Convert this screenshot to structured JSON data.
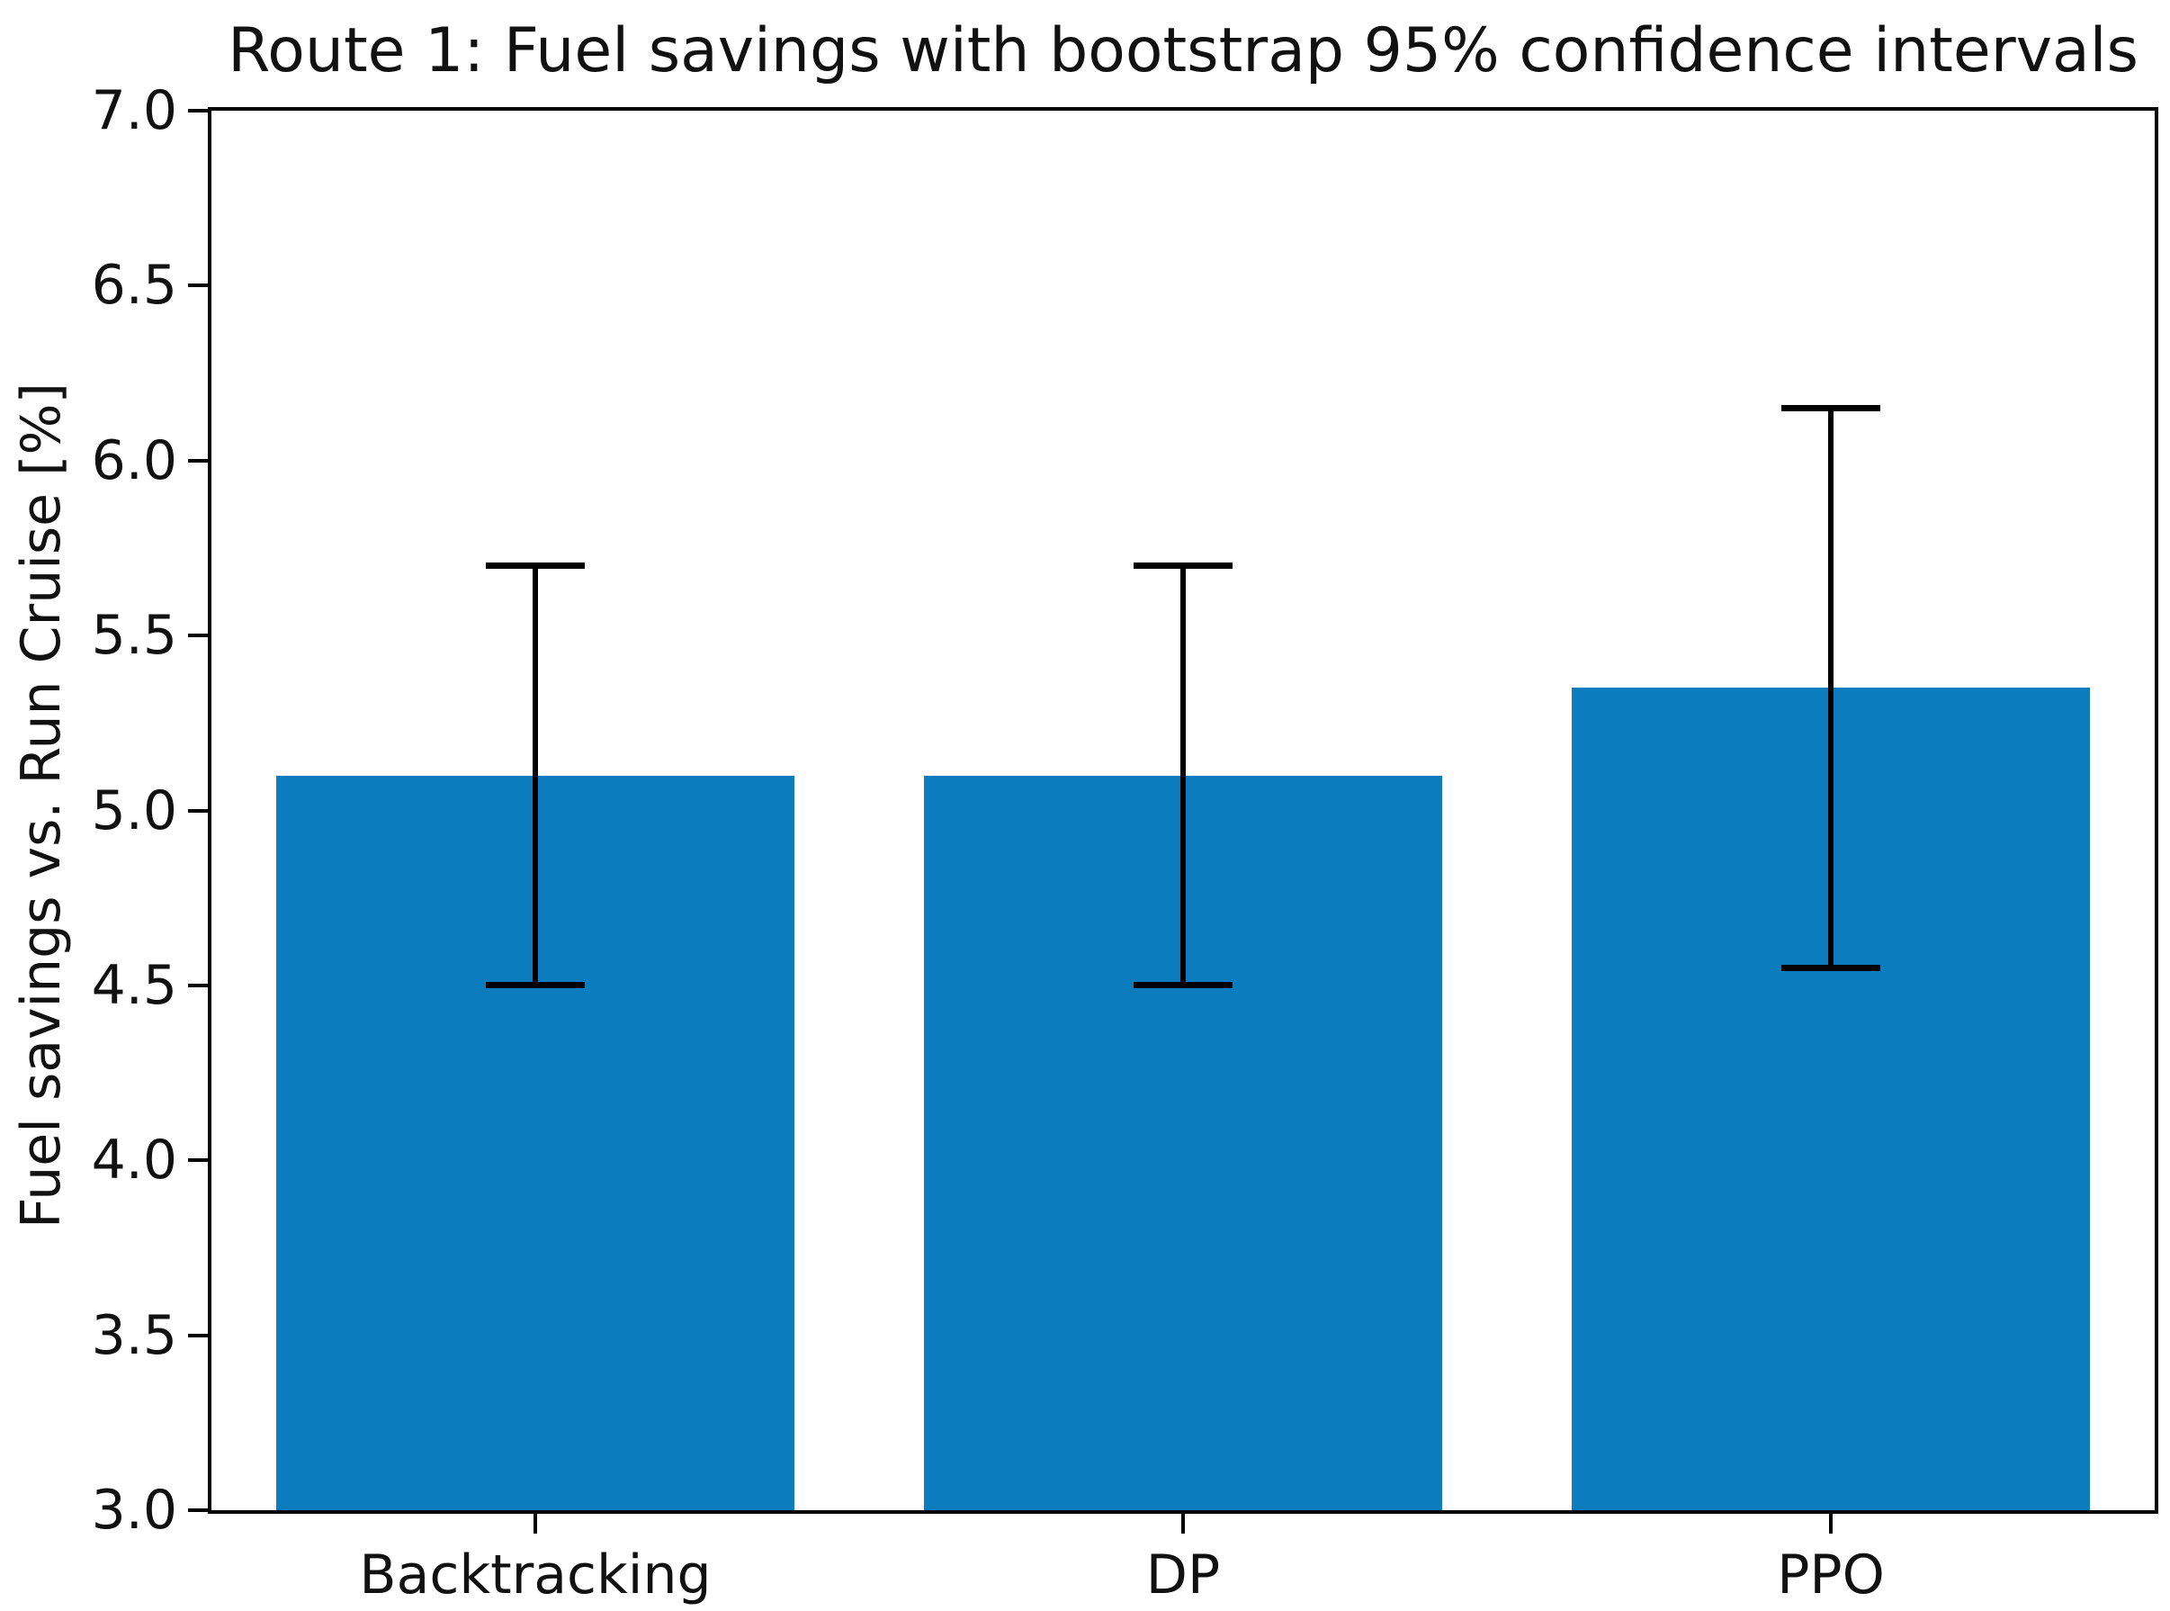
{
  "figure": {
    "background_color": "#ffffff",
    "axis_color": "#000000",
    "text_color": "#111111"
  },
  "chart_data": {
    "type": "bar",
    "title": "Route 1: Fuel savings with bootstrap 95% confidence intervals",
    "xlabel": "",
    "ylabel": "Fuel savings vs. Run Cruise [%]",
    "categories": [
      "Backtracking",
      "DP",
      "PPO"
    ],
    "values": [
      5.1,
      5.1,
      5.35
    ],
    "error_bars": {
      "kind": "bootstrap 95% confidence interval",
      "lower": [
        4.5,
        4.5,
        4.55
      ],
      "upper": [
        5.7,
        5.7,
        6.15
      ]
    },
    "ylim": [
      3.0,
      7.0
    ],
    "yticks": [
      3.0,
      3.5,
      4.0,
      4.5,
      5.0,
      5.5,
      6.0,
      6.5,
      7.0
    ],
    "ytick_labels": [
      "3.0",
      "3.5",
      "4.0",
      "4.5",
      "5.0",
      "5.5",
      "6.0",
      "6.5",
      "7.0"
    ],
    "grid": false,
    "legend": "none",
    "bar_color": "#0b7cbe",
    "error_color": "#000000"
  }
}
